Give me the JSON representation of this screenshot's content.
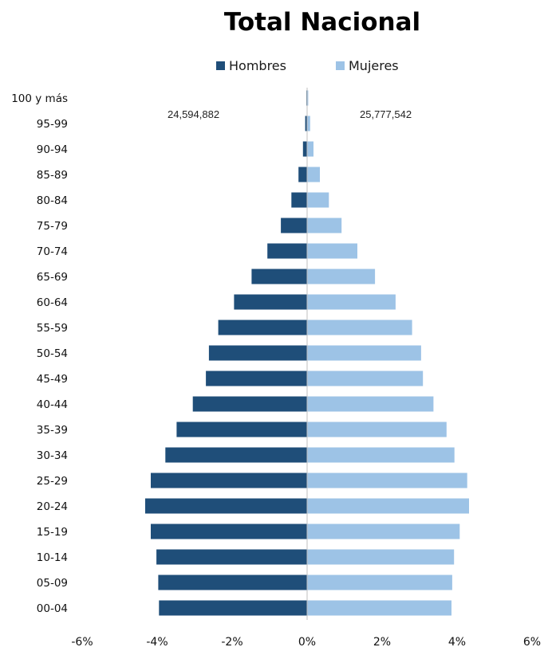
{
  "chart_data": {
    "type": "bar",
    "orientation": "horizontal",
    "title": "Total Nacional",
    "categories": [
      "00-04",
      "05-09",
      "10-14",
      "15-19",
      "20-24",
      "25-29",
      "30-34",
      "35-39",
      "40-44",
      "45-49",
      "50-54",
      "55-59",
      "60-64",
      "65-69",
      "70-74",
      "75-79",
      "80-84",
      "85-89",
      "90-94",
      "95-99",
      "100 y más"
    ],
    "series": [
      {
        "name": "Hombres",
        "color": "#1f4e79",
        "values": [
          -3.95,
          -3.97,
          -4.02,
          -4.17,
          -4.32,
          -4.17,
          -3.78,
          -3.48,
          -3.05,
          -2.7,
          -2.62,
          -2.37,
          -1.95,
          -1.48,
          -1.06,
          -0.7,
          -0.42,
          -0.23,
          -0.11,
          -0.05,
          -0.02
        ]
      },
      {
        "name": "Mujeres",
        "color": "#9dc3e6",
        "values": [
          3.85,
          3.87,
          3.92,
          4.07,
          4.32,
          4.27,
          3.93,
          3.72,
          3.37,
          3.09,
          3.04,
          2.8,
          2.36,
          1.81,
          1.34,
          0.92,
          0.58,
          0.34,
          0.17,
          0.08,
          0.03
        ]
      }
    ],
    "totals": {
      "hombres": "24,594,882",
      "mujeres": "25,777,542"
    },
    "xlim": [
      -6,
      6
    ],
    "xticks": [
      -6,
      -4,
      -2,
      0,
      2,
      4,
      6
    ],
    "xtick_labels": [
      "-6%",
      "-4%",
      "-2%",
      "0%",
      "2%",
      "4%",
      "6%"
    ],
    "legend": "top",
    "grid": false
  }
}
